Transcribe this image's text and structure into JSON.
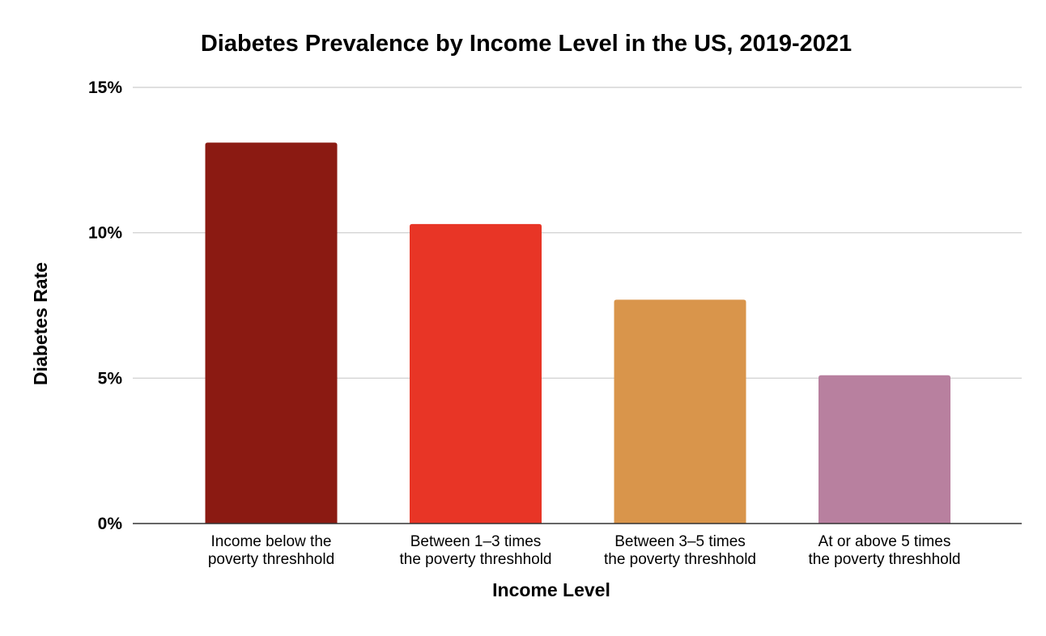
{
  "chart_data": {
    "type": "bar",
    "title": "Diabetes Prevalence by Income Level in the US, 2019-2021",
    "xlabel": "Income Level",
    "ylabel": "Diabetes Rate",
    "ylim": [
      0,
      15
    ],
    "yticks": [
      0,
      5,
      10,
      15
    ],
    "ytick_labels": [
      "0%",
      "5%",
      "10%",
      "15%"
    ],
    "grid": true,
    "legend": "none",
    "categories": [
      [
        "Income below the",
        "poverty threshhold"
      ],
      [
        "Between 1–3 times",
        "the poverty threshhold"
      ],
      [
        "Between 3–5 times",
        "the poverty threshhold"
      ],
      [
        "At or above 5 times",
        "the poverty threshhold"
      ]
    ],
    "values": [
      13.1,
      10.3,
      7.7,
      5.1
    ],
    "colors": [
      "#8b1a12",
      "#e83526",
      "#d9954b",
      "#b8809f"
    ]
  }
}
